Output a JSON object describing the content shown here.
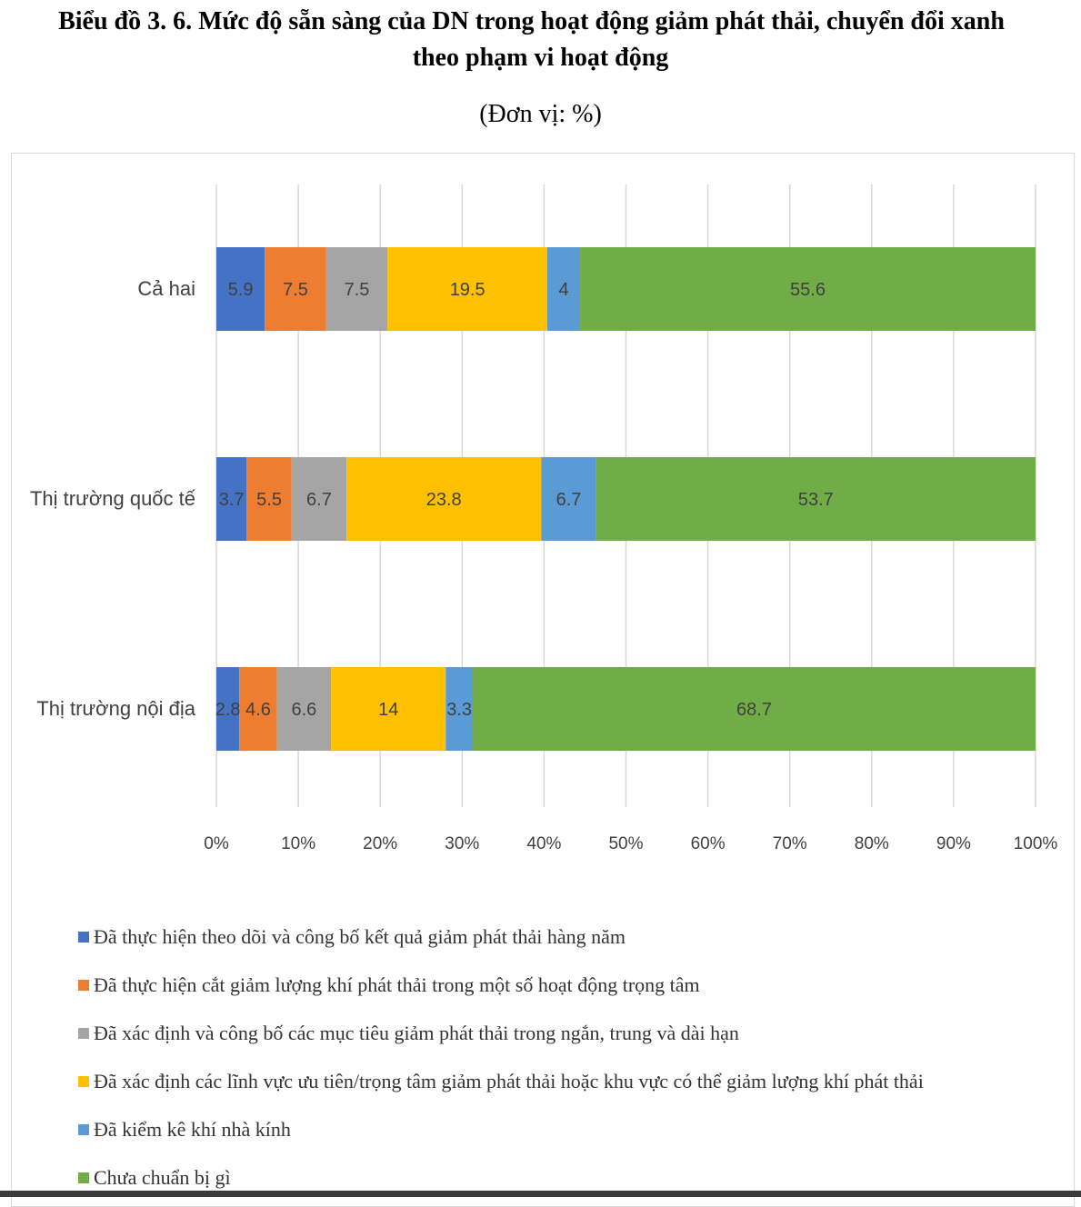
{
  "header": {
    "title_line1": "Biểu đồ 3. 6. Mức độ sẵn sàng của DN trong hoạt động giảm phát thải, chuyển đổi xanh",
    "title_line2": "theo phạm vi hoạt động",
    "unit": "(Đơn vị: %)"
  },
  "chart_data": {
    "type": "bar",
    "orientation": "horizontal",
    "stacked": "percent",
    "categories": [
      "Cả hai",
      "Thị trường quốc tế",
      "Thị trường nội địa"
    ],
    "series": [
      {
        "name": "Đã thực hiện theo dõi và công bố kết quả giảm phát thải hàng năm",
        "color": "#4472c4",
        "values": [
          5.9,
          3.7,
          2.8
        ]
      },
      {
        "name": "Đã thực hiện cắt giảm lượng khí phát thải trong một số hoạt động trọng tâm",
        "color": "#ed7d31",
        "values": [
          7.5,
          5.5,
          4.6
        ]
      },
      {
        "name": "Đã xác định và công bố các mục tiêu giảm phát thải trong ngắn, trung và dài hạn",
        "color": "#a5a5a5",
        "values": [
          7.5,
          6.7,
          6.6
        ]
      },
      {
        "name": "Đã xác định các lĩnh vực ưu tiên/trọng tâm giảm phát thải hoặc khu vực có thể giảm lượng khí phát thải",
        "color": "#ffc000",
        "values": [
          19.5,
          23.8,
          14
        ]
      },
      {
        "name": "Đã kiểm kê khí nhà kính",
        "color": "#5b9bd5",
        "values": [
          4,
          6.7,
          3.3
        ]
      },
      {
        "name": "Chưa chuẩn bị gì",
        "color": "#70ad47",
        "values": [
          55.6,
          53.7,
          68.7
        ]
      }
    ],
    "x_ticks": [
      "0%",
      "10%",
      "20%",
      "30%",
      "40%",
      "50%",
      "60%",
      "70%",
      "80%",
      "90%",
      "100%"
    ],
    "xlim": [
      0,
      100
    ],
    "grid": "vertical",
    "legend_position": "bottom"
  }
}
